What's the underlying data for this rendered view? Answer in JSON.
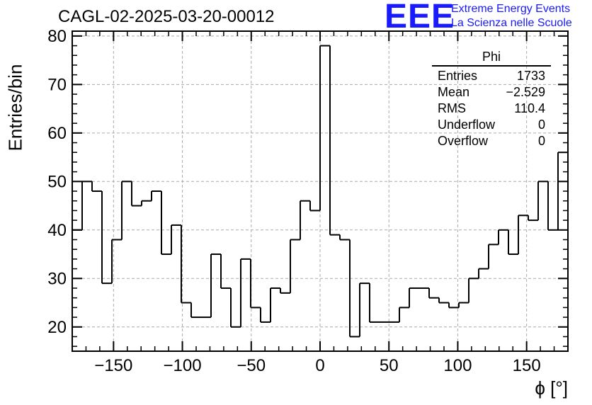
{
  "title": "CAGL-02-2025-03-20-00012",
  "logo": {
    "text": "EEE",
    "line1": "Extreme Energy Events",
    "line2": "La Scienza nelle Scuole",
    "color": "#1a1aff"
  },
  "stats": {
    "title": "Phi",
    "rows": [
      {
        "label": "Entries",
        "value": "1733"
      },
      {
        "label": "Mean",
        "value": "−2.529"
      },
      {
        "label": "RMS",
        "value": "110.4"
      },
      {
        "label": "Underflow",
        "value": "0"
      },
      {
        "label": "Overflow",
        "value": "0"
      }
    ]
  },
  "chart_data": {
    "type": "bar",
    "style": "step-histogram",
    "xlabel": "ϕ [°]",
    "ylabel": "Entries/bin",
    "xlim": [
      -180,
      180
    ],
    "ylim": [
      15,
      81
    ],
    "xticks": [
      -150,
      -100,
      -50,
      0,
      50,
      100,
      150
    ],
    "xtick_labels": [
      "−150",
      "−100",
      "−50",
      "0",
      "50",
      "100",
      "150"
    ],
    "yticks": [
      20,
      30,
      40,
      50,
      60,
      70,
      80
    ],
    "grid": true,
    "bin_width": 7.2,
    "values": [
      40,
      50,
      48,
      29,
      38,
      50,
      45,
      46,
      48,
      35,
      41,
      25,
      22,
      22,
      35,
      28,
      20,
      34,
      24,
      21,
      28,
      27,
      38,
      46,
      44,
      78,
      39,
      38,
      18,
      29,
      21,
      21,
      21,
      24,
      28,
      28,
      26,
      25,
      24,
      25,
      30,
      32,
      37,
      40,
      35,
      43,
      42,
      50,
      40,
      56
    ],
    "line_color": "#000000"
  }
}
